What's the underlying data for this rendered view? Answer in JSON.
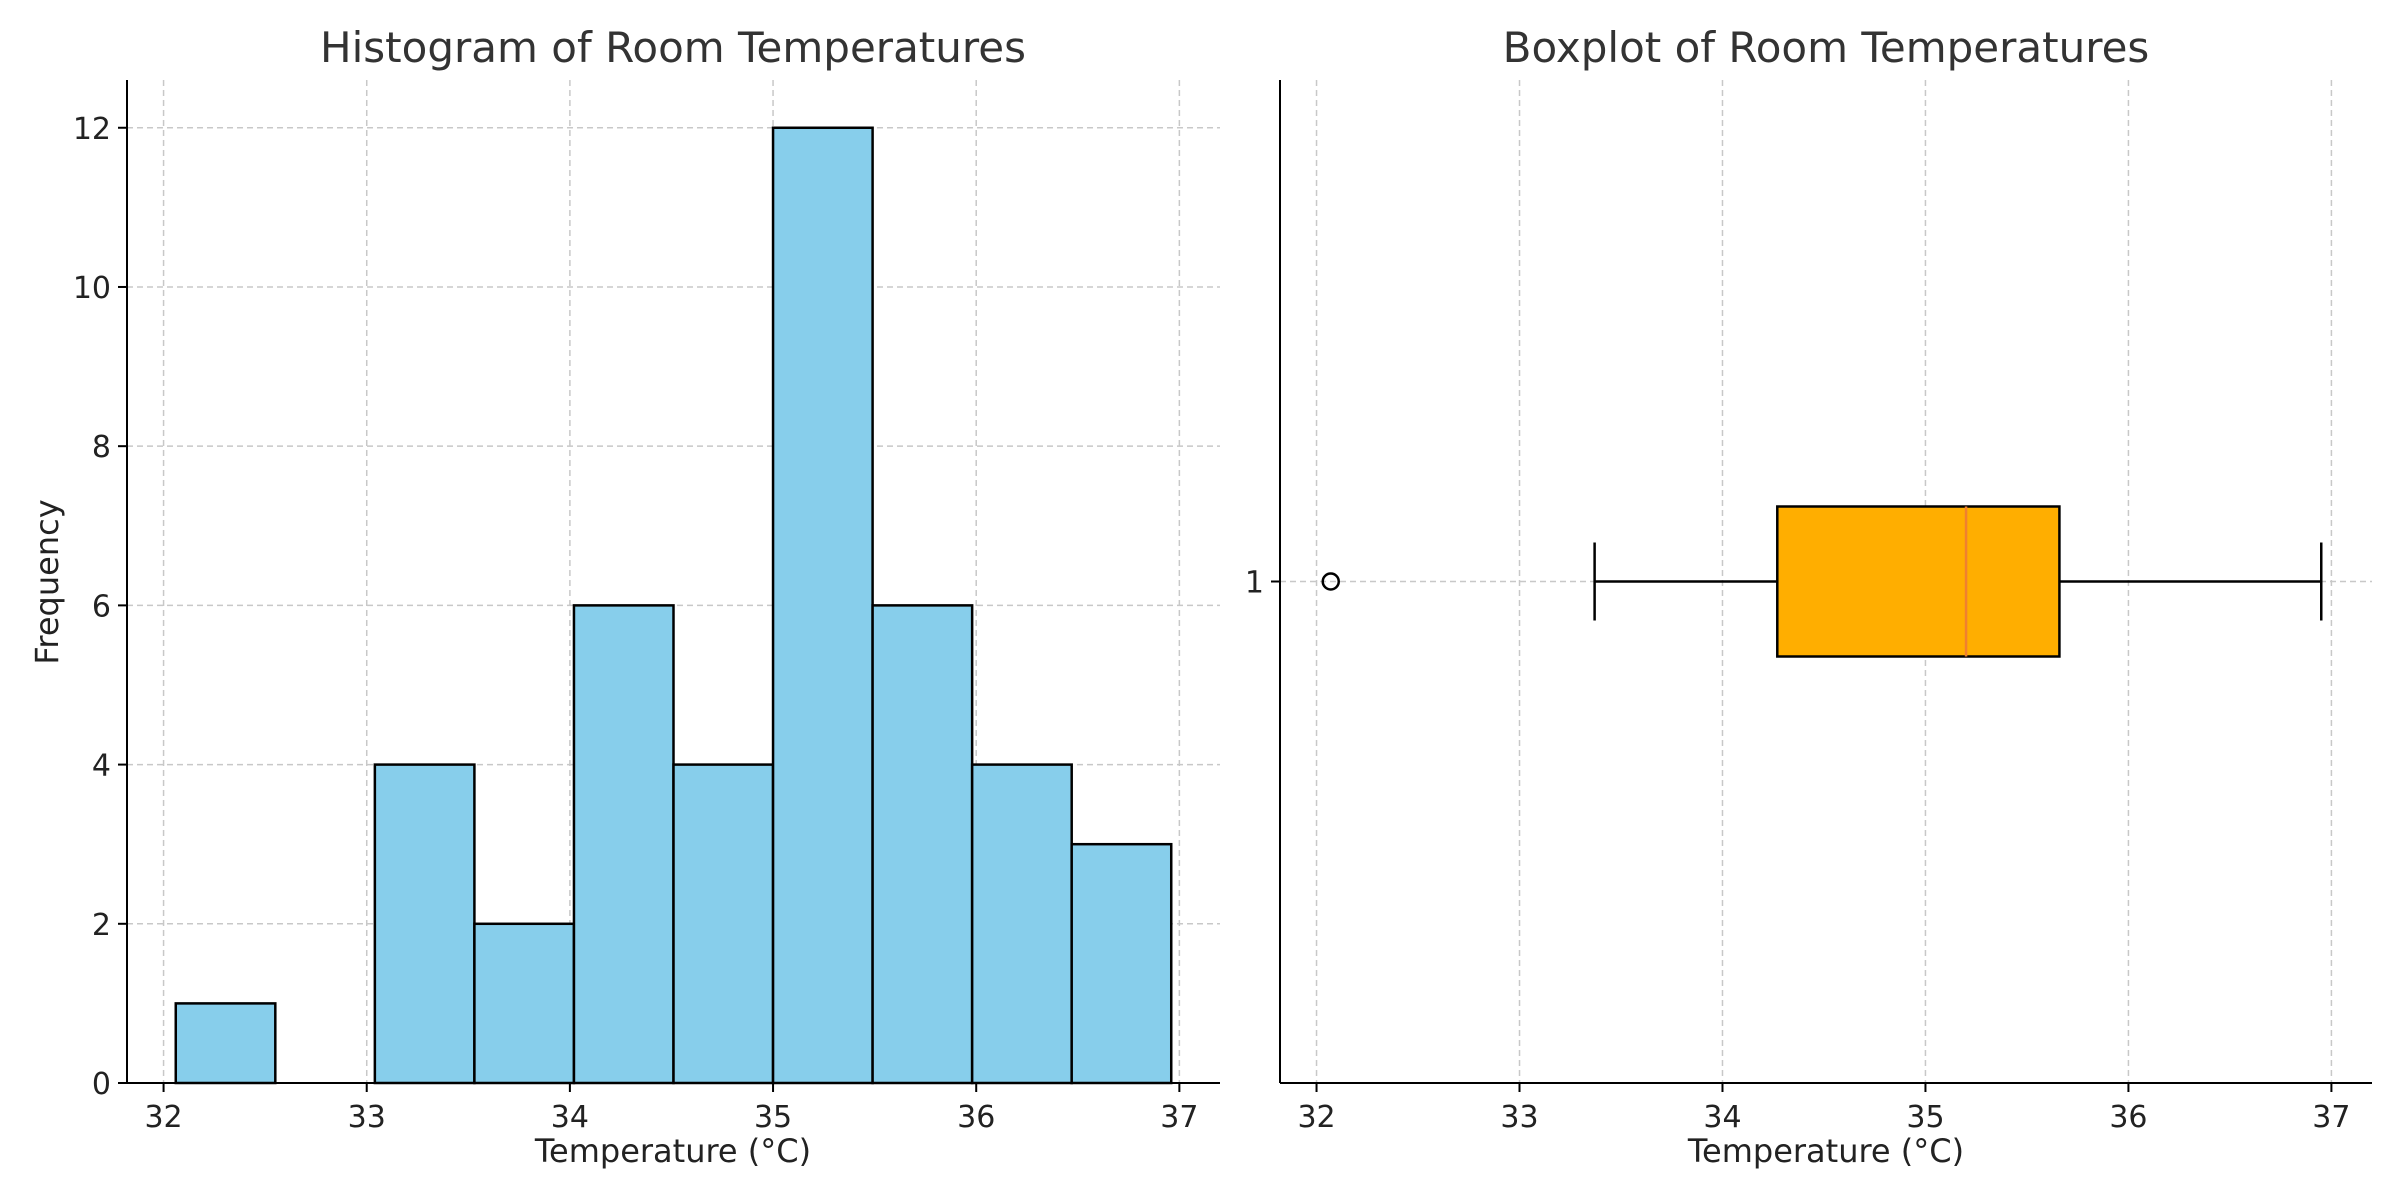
{
  "chart_data": [
    {
      "type": "histogram",
      "title": "Histogram of Room Temperatures",
      "xlabel": "Temperature (°C)",
      "ylabel": "Frequency",
      "xlim": [
        31.82,
        37.2
      ],
      "ylim": [
        0,
        12.6
      ],
      "x_ticks": [
        32,
        33,
        34,
        35,
        36,
        37
      ],
      "y_ticks": [
        0,
        2,
        4,
        6,
        8,
        10,
        12
      ],
      "grid": true,
      "bar_color": "#87CEEB",
      "edge_color": "#000000",
      "bins": [
        {
          "x0": 32.06,
          "x1": 32.55,
          "count": 1
        },
        {
          "x0": 32.55,
          "x1": 33.04,
          "count": 0
        },
        {
          "x0": 33.04,
          "x1": 33.53,
          "count": 4
        },
        {
          "x0": 33.53,
          "x1": 34.02,
          "count": 2
        },
        {
          "x0": 34.02,
          "x1": 34.51,
          "count": 6
        },
        {
          "x0": 34.51,
          "x1": 35.0,
          "count": 4
        },
        {
          "x0": 35.0,
          "x1": 35.49,
          "count": 12
        },
        {
          "x0": 35.49,
          "x1": 35.98,
          "count": 6
        },
        {
          "x0": 35.98,
          "x1": 36.47,
          "count": 4
        },
        {
          "x0": 36.47,
          "x1": 36.96,
          "count": 3
        }
      ]
    },
    {
      "type": "boxplot",
      "title": "Boxplot of Room Temperatures",
      "xlabel": "Temperature (°C)",
      "xlim": [
        31.82,
        37.2
      ],
      "x_ticks": [
        32,
        33,
        34,
        35,
        36,
        37
      ],
      "y_ticks": [
        "1"
      ],
      "grid": true,
      "box_color": "#FFAE00",
      "median_color": "#F08030",
      "box": {
        "whisker_low": 33.37,
        "q1": 34.27,
        "median": 35.2,
        "q3": 35.66,
        "whisker_high": 36.95,
        "outliers": [
          32.07
        ]
      }
    }
  ]
}
